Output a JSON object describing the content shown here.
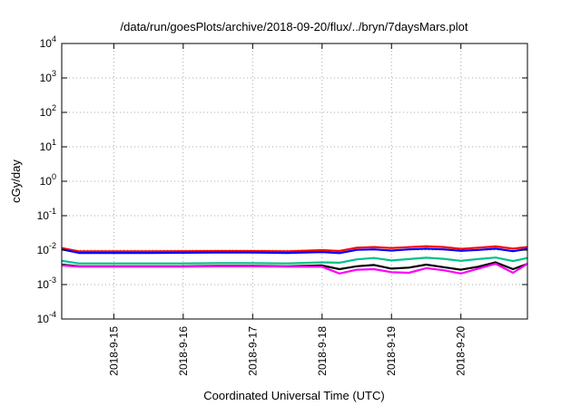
{
  "chart_data": {
    "type": "line",
    "title": "/data/run/goesPlots/archive/2018-09-20/flux/../bryn/7daysMars.plot",
    "xlabel": "Coordinated Universal Time (UTC)",
    "ylabel": "cGy/day",
    "yscale": "log",
    "ylim": [
      0.0001,
      10000
    ],
    "xlim": [
      "2018-09-14 06:00",
      "2018-09-20 23:00"
    ],
    "grid": true,
    "y_ticks": [
      {
        "base": "10",
        "exp": "-4",
        "value": 0.0001
      },
      {
        "base": "10",
        "exp": "-3",
        "value": 0.001
      },
      {
        "base": "10",
        "exp": "-2",
        "value": 0.01
      },
      {
        "base": "10",
        "exp": "-1",
        "value": 0.1
      },
      {
        "base": "10",
        "exp": "0",
        "value": 1
      },
      {
        "base": "10",
        "exp": "1",
        "value": 10
      },
      {
        "base": "10",
        "exp": "2",
        "value": 100
      },
      {
        "base": "10",
        "exp": "3",
        "value": 1000
      },
      {
        "base": "10",
        "exp": "4",
        "value": 10000
      }
    ],
    "x_ticks": [
      "2018-9-15",
      "2018-9-16",
      "2018-9-17",
      "2018-9-18",
      "2018-9-19",
      "2018-9-20"
    ],
    "x_tick_dates": [
      "2018-09-15 00:00",
      "2018-09-16 00:00",
      "2018-09-17 00:00",
      "2018-09-18 00:00",
      "2018-09-19 00:00",
      "2018-09-20 00:00"
    ],
    "x": [
      "2018-09-14 06:00",
      "2018-09-14 12:00",
      "2018-09-15 00:00",
      "2018-09-15 12:00",
      "2018-09-16 00:00",
      "2018-09-16 12:00",
      "2018-09-17 00:00",
      "2018-09-17 12:00",
      "2018-09-18 00:00",
      "2018-09-18 06:00",
      "2018-09-18 12:00",
      "2018-09-18 18:00",
      "2018-09-19 00:00",
      "2018-09-19 06:00",
      "2018-09-19 12:00",
      "2018-09-19 18:00",
      "2018-09-20 00:00",
      "2018-09-20 06:00",
      "2018-09-20 12:00",
      "2018-09-20 18:00",
      "2018-09-20 23:00"
    ],
    "series": [
      {
        "color": "#ff0000",
        "values": [
          0.0115,
          0.0092,
          0.0092,
          0.0092,
          0.0093,
          0.0094,
          0.0094,
          0.0092,
          0.01,
          0.0094,
          0.0118,
          0.0123,
          0.0115,
          0.0122,
          0.013,
          0.0123,
          0.0109,
          0.0118,
          0.0128,
          0.011,
          0.0123
        ]
      },
      {
        "color": "#0000ff",
        "values": [
          0.0105,
          0.0083,
          0.0083,
          0.0083,
          0.0084,
          0.0085,
          0.0085,
          0.0083,
          0.0088,
          0.0082,
          0.0102,
          0.0105,
          0.0097,
          0.0105,
          0.011,
          0.0105,
          0.0095,
          0.0101,
          0.011,
          0.0093,
          0.0108
        ]
      },
      {
        "color": "#00c08a",
        "values": [
          0.0049,
          0.0041,
          0.0041,
          0.0041,
          0.0041,
          0.0042,
          0.0042,
          0.0041,
          0.0044,
          0.0043,
          0.0054,
          0.0059,
          0.005,
          0.0055,
          0.006,
          0.0056,
          0.0049,
          0.0055,
          0.0061,
          0.0048,
          0.0059
        ]
      },
      {
        "color": "#000000",
        "values": [
          0.0038,
          0.0034,
          0.0034,
          0.0034,
          0.0034,
          0.0035,
          0.0035,
          0.0034,
          0.0036,
          0.0028,
          0.0034,
          0.0037,
          0.0029,
          0.0031,
          0.0038,
          0.0032,
          0.0027,
          0.0033,
          0.0044,
          0.0028,
          0.004
        ]
      },
      {
        "color": "#ff00ff",
        "values": [
          0.0036,
          0.0033,
          0.0033,
          0.0033,
          0.0033,
          0.0034,
          0.0034,
          0.0033,
          0.0033,
          0.0021,
          0.0027,
          0.0028,
          0.0023,
          0.0022,
          0.003,
          0.0026,
          0.0021,
          0.0029,
          0.004,
          0.0022,
          0.004
        ]
      }
    ]
  }
}
